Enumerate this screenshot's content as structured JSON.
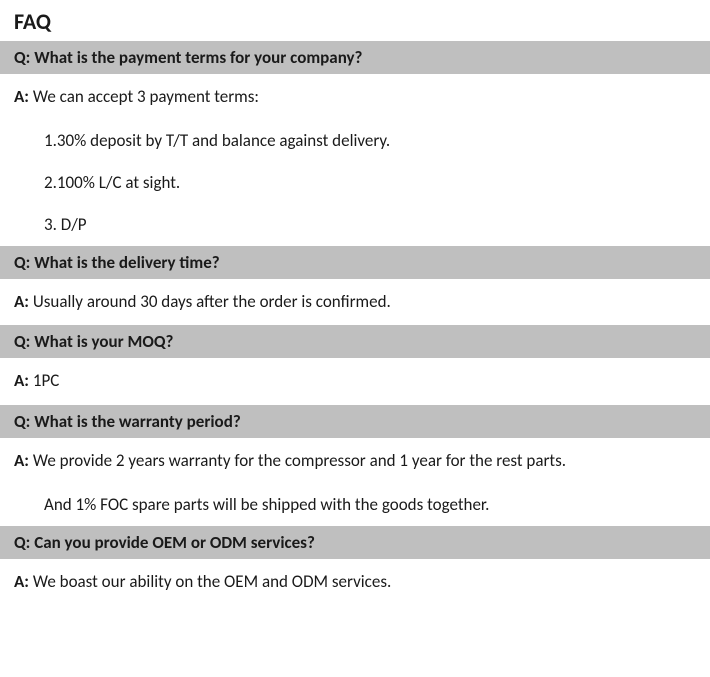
{
  "title": "FAQ",
  "q_prefix": "Q: ",
  "a_prefix": "A: ",
  "colors": {
    "question_bg": "#bfbfbf",
    "page_bg": "#ffffff",
    "text": "#1a1a1a"
  },
  "typography": {
    "title_fontsize": 22,
    "body_fontsize": 17,
    "font_family": "Calibri, Arial, sans-serif",
    "title_weight": "bold",
    "question_weight": "bold"
  },
  "items": [
    {
      "question": "What is the payment terms for your company?",
      "answer": "We can accept 3 payment terms:",
      "list": [
        "1.30% deposit by T/T and balance against delivery.",
        "2.100% L/C at sight.",
        "3. D/P"
      ]
    },
    {
      "question": "What is the delivery time?",
      "answer": "Usually around 30 days after the order is confirmed."
    },
    {
      "question": "What is your MOQ?",
      "answer": "1PC"
    },
    {
      "question": "What is the warranty period?",
      "answer": "We provide 2 years warranty for the compressor and 1 year for the rest parts.",
      "extra": "And 1% FOC spare parts will be shipped with the goods together."
    },
    {
      "question": "Can you provide OEM or ODM services?",
      "answer": "We boast our ability on the OEM and ODM services."
    }
  ]
}
